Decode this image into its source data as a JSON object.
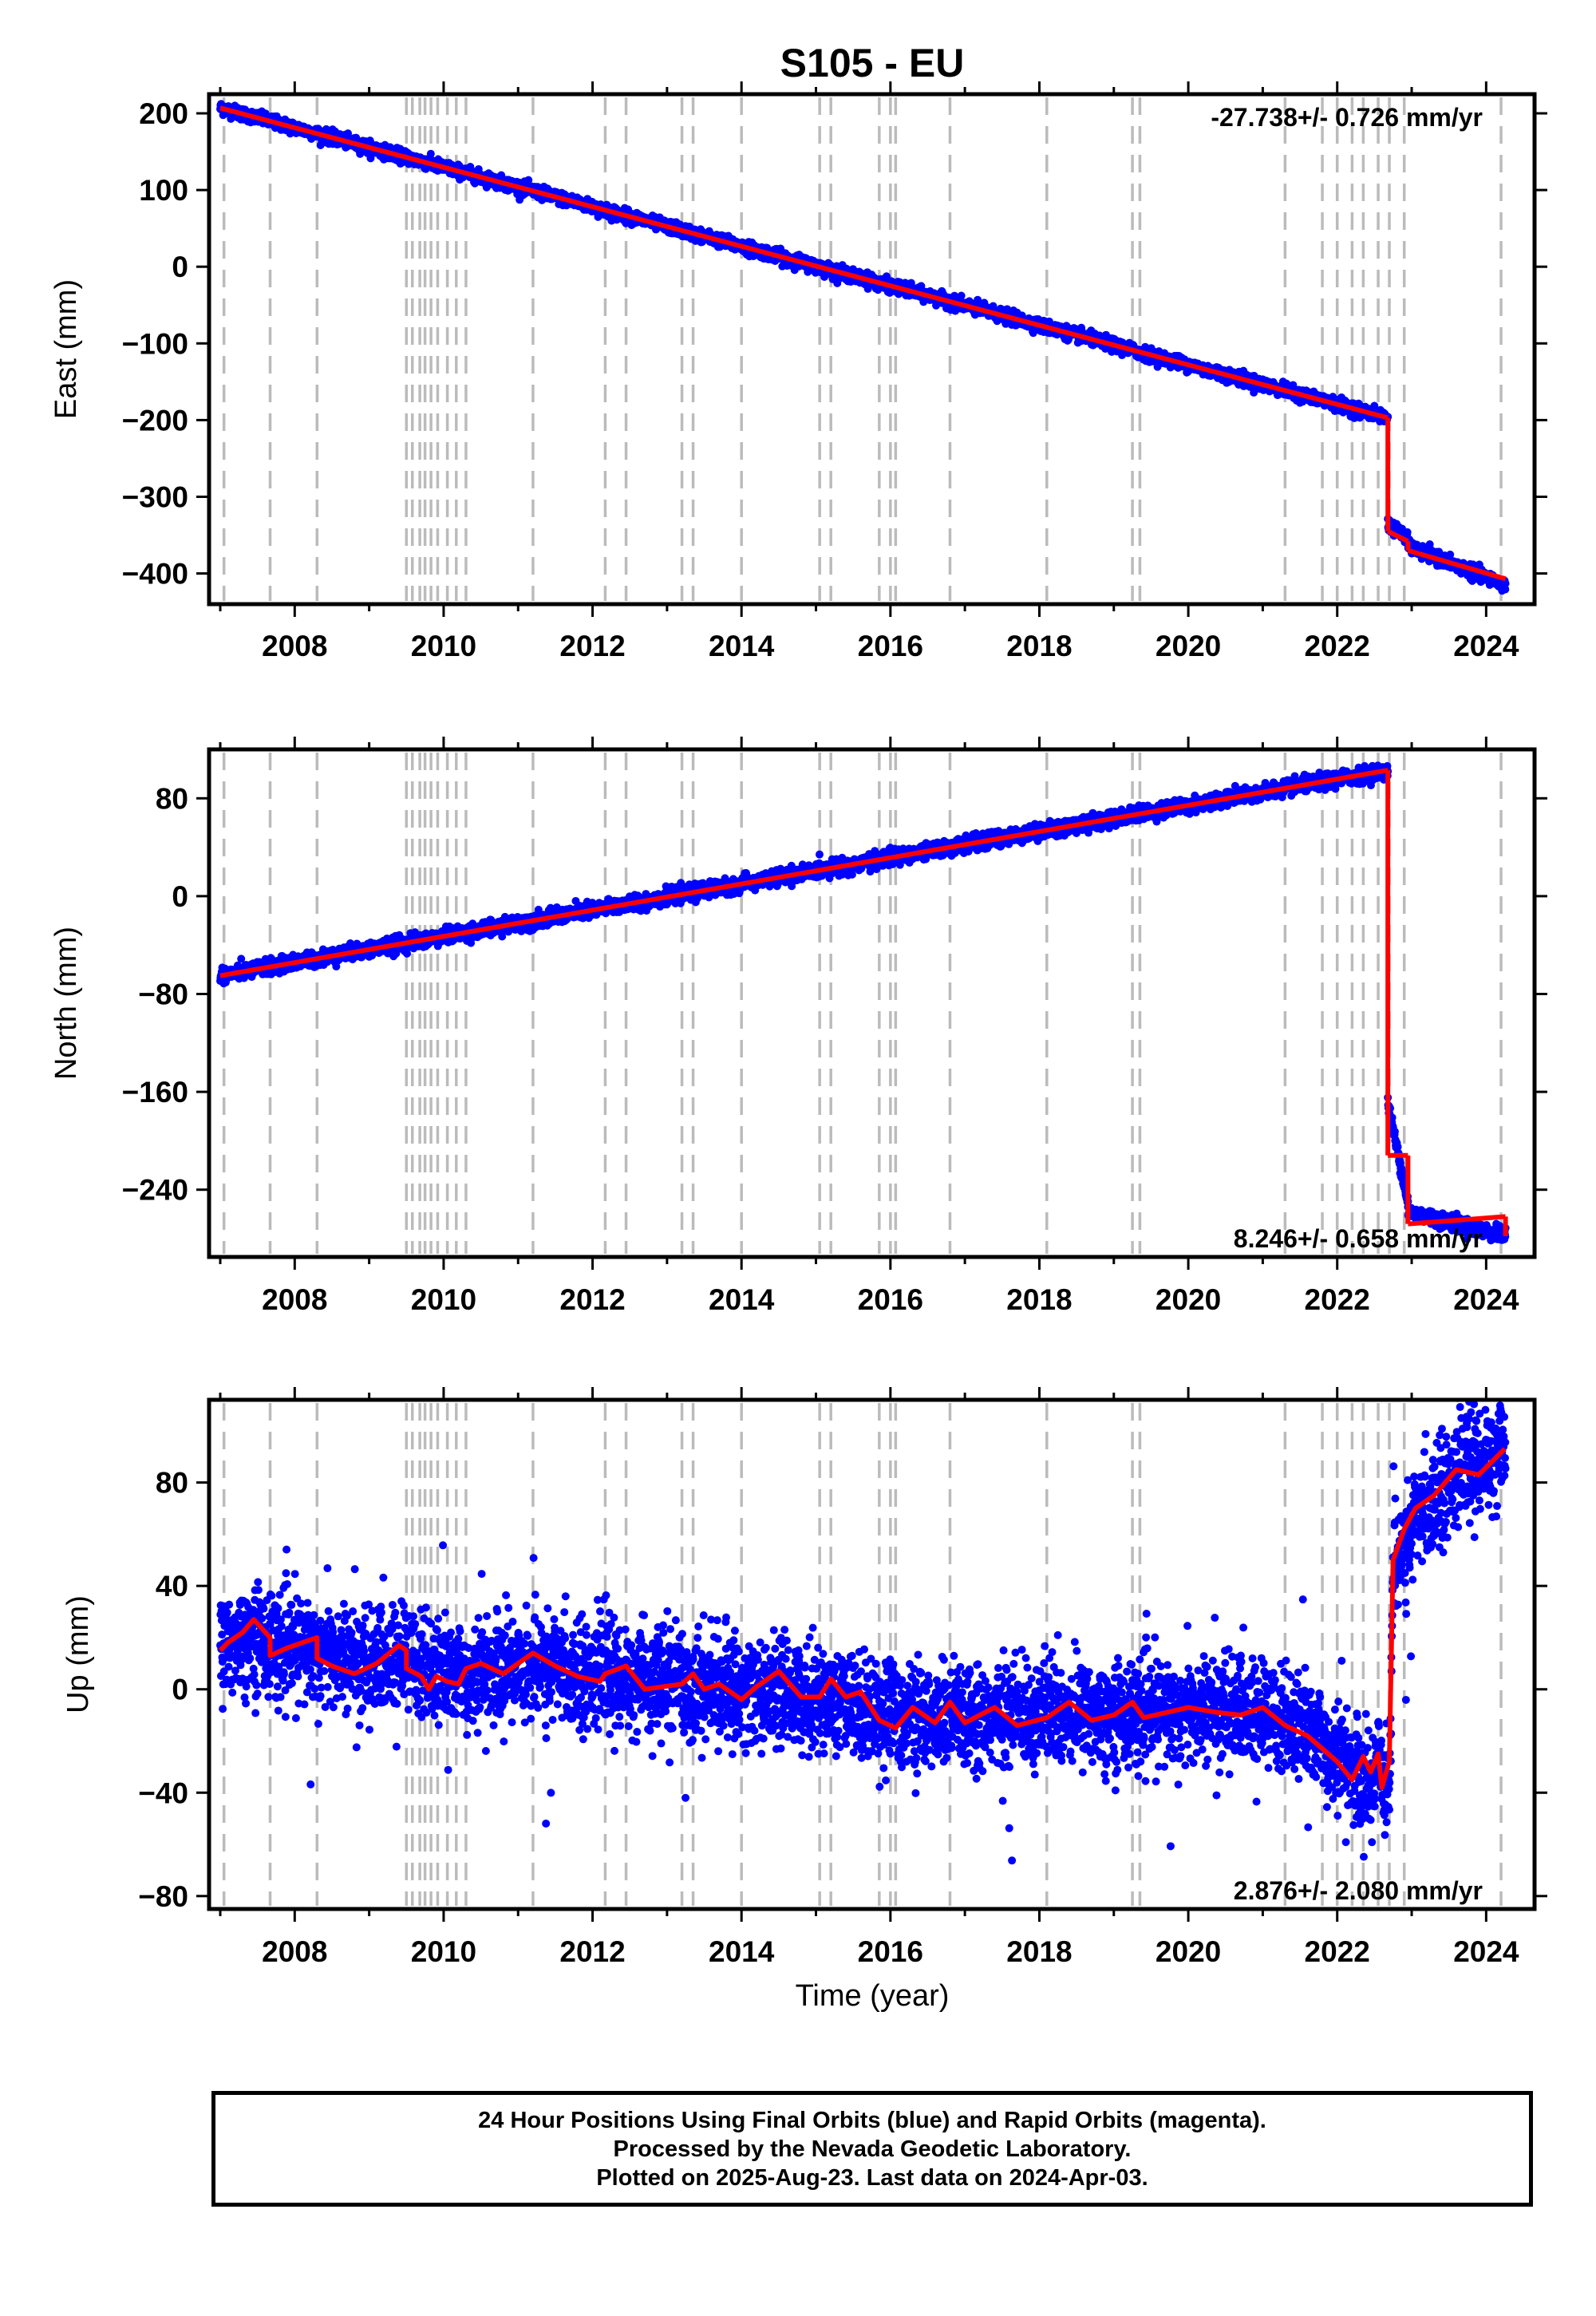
{
  "title": "S105 - EU",
  "x_axis_label": "Time (year)",
  "colors": {
    "points": "#0000ff",
    "model": "#ff0000",
    "event_lines": "#bbbbbb",
    "frame": "#000000"
  },
  "footer": {
    "line1": "24 Hour Positions Using Final Orbits (blue) and Rapid Orbits (magenta).",
    "line2": "Processed by the Nevada Geodetic Laboratory.",
    "line3": "Plotted on 2025-Aug-23. Last data on 2024-Apr-03."
  },
  "chart_data": [
    {
      "type": "scatter",
      "title": "S105 - EU",
      "ylabel": "East (mm)",
      "xlabel": "",
      "xlim": [
        2006.85,
        2024.65
      ],
      "ylim": [
        -440,
        225
      ],
      "xticks": [
        2008,
        2010,
        2012,
        2014,
        2016,
        2018,
        2020,
        2022,
        2024
      ],
      "yticks": [
        200,
        100,
        0,
        -100,
        -200,
        -300,
        -400
      ],
      "ytick_labels": [
        "200",
        "100",
        "0",
        "−100",
        "−200",
        "−300",
        "−400"
      ],
      "grid": false,
      "rate_annotation": "-27.738+/- 0.726 mm/yr",
      "event_lines": [
        2007.05,
        2007.67,
        2008.3,
        2009.5,
        2009.58,
        2009.68,
        2009.75,
        2009.83,
        2009.92,
        2010.05,
        2010.17,
        2010.3,
        2011.2,
        2012.17,
        2012.45,
        2013.2,
        2013.35,
        2014.0,
        2015.05,
        2015.2,
        2015.85,
        2016.0,
        2016.07,
        2016.8,
        2018.1,
        2019.25,
        2019.35,
        2021.3,
        2021.8,
        2022.0,
        2022.2,
        2022.35,
        2022.55,
        2022.7,
        2022.9,
        2024.2
      ],
      "series": [
        {
          "kind": "model_segments",
          "segments": [
            {
              "x": [
                2007.0,
                2022.68
              ],
              "y": [
                207,
                -197
              ]
            },
            {
              "x": [
                2022.68,
                2022.95
              ],
              "y": [
                -345,
                -358
              ]
            },
            {
              "x": [
                2022.95,
                2024.26
              ],
              "y": [
                -370,
                -407
              ]
            }
          ],
          "steps": [
            {
              "x": 2022.68,
              "y": [
                -197,
                -345
              ]
            },
            {
              "x": 2022.95,
              "y": [
                -358,
                -370
              ]
            }
          ]
        },
        {
          "kind": "points",
          "noise": 4,
          "segments": [
            {
              "x": [
                2007.0,
                2022.68
              ],
              "y": [
                207,
                -197
              ]
            },
            {
              "x": [
                2022.68,
                2022.95
              ],
              "y": [
                -335,
                -355
              ]
            },
            {
              "x": [
                2022.95,
                2024.26
              ],
              "y": [
                -365,
                -415
              ]
            }
          ]
        }
      ]
    },
    {
      "type": "scatter",
      "ylabel": "North (mm)",
      "xlabel": "",
      "xlim": [
        2006.85,
        2024.65
      ],
      "ylim": [
        -295,
        120
      ],
      "xticks": [
        2008,
        2010,
        2012,
        2014,
        2016,
        2018,
        2020,
        2022,
        2024
      ],
      "yticks": [
        80,
        0,
        -80,
        -160,
        -240
      ],
      "ytick_labels": [
        "80",
        "0",
        "−80",
        "−160",
        "−240"
      ],
      "grid": false,
      "rate_annotation": "8.246+/- 0.658 mm/yr",
      "event_lines": [
        2007.05,
        2007.67,
        2008.3,
        2009.5,
        2009.58,
        2009.68,
        2009.75,
        2009.83,
        2009.92,
        2010.05,
        2010.17,
        2010.3,
        2011.2,
        2012.17,
        2012.45,
        2013.2,
        2013.35,
        2014.0,
        2015.05,
        2015.2,
        2015.85,
        2016.0,
        2016.07,
        2016.8,
        2018.1,
        2019.25,
        2019.35,
        2021.3,
        2021.8,
        2022.0,
        2022.2,
        2022.35,
        2022.55,
        2022.7,
        2022.9,
        2024.2
      ],
      "series": [
        {
          "kind": "model_segments",
          "segments": [
            {
              "x": [
                2007.0,
                2022.68
              ],
              "y": [
                -65,
                103
              ]
            },
            {
              "x": [
                2022.68,
                2022.95
              ],
              "y": [
                -212,
                -212
              ]
            },
            {
              "x": [
                2022.95,
                2024.26
              ],
              "y": [
                -268,
                -262
              ]
            }
          ],
          "steps": [
            {
              "x": 2022.68,
              "y": [
                103,
                -212
              ]
            },
            {
              "x": 2022.95,
              "y": [
                -212,
                -268
              ]
            },
            {
              "x": 2024.26,
              "y": [
                -262,
                -278
              ]
            }
          ]
        },
        {
          "kind": "points",
          "noise": 3,
          "segments": [
            {
              "x": [
                2007.0,
                2022.68
              ],
              "y": [
                -65,
                103
              ]
            },
            {
              "x": [
                2022.68,
                2022.95
              ],
              "y": [
                -170,
                -250
              ]
            },
            {
              "x": [
                2022.95,
                2024.26
              ],
              "y": [
                -258,
                -278
              ]
            }
          ]
        }
      ]
    },
    {
      "type": "scatter",
      "ylabel": "Up (mm)",
      "xlabel": "Time (year)",
      "xlim": [
        2006.85,
        2024.65
      ],
      "ylim": [
        -85,
        112
      ],
      "xticks": [
        2008,
        2010,
        2012,
        2014,
        2016,
        2018,
        2020,
        2022,
        2024
      ],
      "yticks": [
        80,
        40,
        0,
        -40,
        -80
      ],
      "ytick_labels": [
        "80",
        "40",
        "0",
        "−40",
        "−80"
      ],
      "grid": false,
      "rate_annotation": "2.876+/- 2.080 mm/yr",
      "event_lines": [
        2007.05,
        2007.67,
        2008.3,
        2009.5,
        2009.58,
        2009.68,
        2009.75,
        2009.83,
        2009.92,
        2010.05,
        2010.17,
        2010.3,
        2011.2,
        2012.17,
        2012.45,
        2013.2,
        2013.35,
        2014.0,
        2015.05,
        2015.2,
        2015.85,
        2016.0,
        2016.07,
        2016.8,
        2018.1,
        2019.25,
        2019.35,
        2021.3,
        2021.8,
        2022.0,
        2022.2,
        2022.35,
        2022.55,
        2022.7,
        2022.9,
        2024.2
      ],
      "series": [
        {
          "kind": "model_path",
          "x": [
            2007.0,
            2007.1,
            2007.3,
            2007.45,
            2007.67,
            2007.67,
            2007.9,
            2008.1,
            2008.3,
            2008.3,
            2008.5,
            2008.8,
            2009.1,
            2009.4,
            2009.5,
            2009.5,
            2009.7,
            2009.8,
            2009.9,
            2010.05,
            2010.2,
            2010.3,
            2010.5,
            2010.8,
            2011.2,
            2011.5,
            2011.8,
            2012.1,
            2012.17,
            2012.45,
            2012.7,
            2013.2,
            2013.35,
            2013.5,
            2013.7,
            2014.0,
            2014.2,
            2014.5,
            2014.8,
            2015.05,
            2015.2,
            2015.4,
            2015.6,
            2015.85,
            2016.07,
            2016.3,
            2016.6,
            2016.8,
            2017.0,
            2017.4,
            2017.7,
            2018.1,
            2018.4,
            2018.7,
            2019.0,
            2019.25,
            2019.4,
            2019.7,
            2020.0,
            2020.4,
            2020.7,
            2021.0,
            2021.3,
            2021.6,
            2021.8,
            2022.0,
            2022.2,
            2022.35,
            2022.45,
            2022.55,
            2022.6,
            2022.7,
            2022.75,
            2022.9,
            2023.05,
            2023.3,
            2023.6,
            2023.9,
            2024.25
          ],
          "y": [
            15,
            18,
            22,
            27,
            20,
            13,
            16,
            18,
            20,
            12,
            9,
            6,
            10,
            17,
            15,
            8,
            5,
            0,
            5,
            3,
            2,
            8,
            10,
            6,
            14,
            9,
            5,
            3,
            6,
            9,
            0,
            2,
            6,
            0,
            2,
            -4,
            1,
            7,
            -3,
            -3,
            4,
            -3,
            -1,
            -12,
            -15,
            -7,
            -13,
            -5,
            -13,
            -7,
            -14,
            -11,
            -5,
            -12,
            -10,
            -5,
            -11,
            -9,
            -7,
            -9,
            -10,
            -7,
            -14,
            -18,
            -23,
            -28,
            -35,
            -26,
            -32,
            -25,
            -38,
            -28,
            50,
            62,
            70,
            75,
            85,
            83,
            93
          ]
        },
        {
          "kind": "points_path",
          "noise": 10,
          "x": [
            2007.0,
            2007.4,
            2007.8,
            2008.3,
            2009.0,
            2009.5,
            2010.0,
            2011.2,
            2012.0,
            2013.0,
            2014.0,
            2015.0,
            2015.8,
            2016.5,
            2017.5,
            2018.5,
            2019.5,
            2020.5,
            2021.3,
            2021.8,
            2022.2,
            2022.45,
            2022.55,
            2022.7,
            2022.75,
            2023.0,
            2023.3,
            2023.7,
            2024.26
          ],
          "y": [
            15,
            22,
            16,
            15,
            9,
            12,
            5,
            10,
            5,
            2,
            0,
            -3,
            -8,
            -12,
            -10,
            -9,
            -9,
            -8,
            -12,
            -20,
            -30,
            -40,
            -25,
            -40,
            45,
            62,
            75,
            85,
            92
          ]
        }
      ]
    }
  ]
}
